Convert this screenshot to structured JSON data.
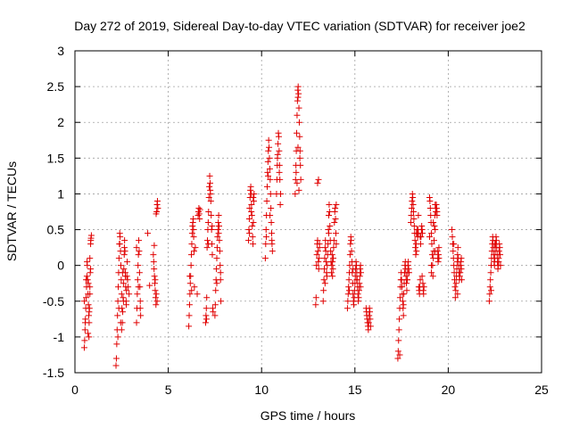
{
  "chart_data": {
    "type": "scatter",
    "title": "Day 272 of 2019, Sidereal Day-to-day VTEC variation (SDTVAR) for receiver joe2",
    "xlabel": "GPS time / hours",
    "ylabel": "SDTVAR / TECUs",
    "xlim": [
      0,
      25
    ],
    "ylim": [
      -1.5,
      3
    ],
    "xticks": [
      "0",
      "5",
      "10",
      "15",
      "20",
      "25"
    ],
    "yticks": [
      "-1.5",
      "-1",
      "-0.5",
      "0",
      "0.5",
      "1",
      "1.5",
      "2",
      "2.5",
      "3"
    ],
    "grid": true,
    "marker": "plus",
    "marker_color": "#e00000",
    "series": [
      {
        "x": [
          0.5,
          0.52,
          0.54,
          0.56,
          0.58,
          0.6,
          0.62,
          0.64,
          0.66,
          0.68,
          0.7,
          0.72,
          0.74,
          0.76,
          0.78,
          0.8,
          0.82,
          0.84,
          0.86,
          0.88,
          0.5,
          0.55,
          0.6,
          0.65,
          0.7,
          0.75,
          0.8,
          0.85,
          0.72,
          0.76,
          0.8,
          0.84,
          2.2,
          2.22,
          2.24,
          2.26,
          2.28,
          2.3,
          2.32,
          2.34,
          2.36,
          2.38,
          2.4,
          2.42,
          2.44,
          2.46,
          2.48,
          2.5,
          2.52,
          2.54,
          2.56,
          2.58,
          2.6,
          2.62,
          2.64,
          2.66,
          2.68,
          2.7,
          2.72,
          2.74,
          2.76,
          2.78,
          2.8,
          2.82,
          2.85,
          2.9,
          2.3,
          2.35,
          2.4,
          2.45,
          2.5,
          2.55,
          2.6,
          2.65,
          2.7,
          2.75,
          3.3,
          3.32,
          3.34,
          3.36,
          3.38,
          3.4,
          3.42,
          3.44,
          3.46,
          3.48,
          3.5,
          3.52,
          3.3,
          3.4,
          3.5,
          3.9,
          4.0,
          4.2,
          4.22,
          4.24,
          4.26,
          4.28,
          4.3,
          4.32,
          4.34,
          4.36,
          4.38,
          4.4,
          4.42,
          4.44,
          4.25,
          4.3,
          4.35,
          4.4,
          6.1,
          6.12,
          6.14,
          6.16,
          6.18,
          6.2,
          6.22,
          6.24,
          6.26,
          6.28,
          6.3,
          6.32,
          6.34,
          6.36,
          6.38,
          6.4,
          6.15,
          6.25,
          6.35,
          6.45,
          6.55,
          6.6,
          6.62,
          6.64,
          6.66,
          6.68,
          6.7,
          7.0,
          7.02,
          7.04,
          7.06,
          7.08,
          7.1,
          7.12,
          7.14,
          7.16,
          7.18,
          7.2,
          7.22,
          7.24,
          7.26,
          7.28,
          7.3,
          7.32,
          7.34,
          7.36,
          7.38,
          7.4,
          7.05,
          7.15,
          7.25,
          7.35,
          7.5,
          7.52,
          7.54,
          7.56,
          7.58,
          7.6,
          7.62,
          7.64,
          7.66,
          7.68,
          7.7,
          7.72,
          7.74,
          7.76,
          7.78,
          7.8,
          7.82,
          7.6,
          7.7,
          7.8,
          9.3,
          9.32,
          9.34,
          9.36,
          9.38,
          9.4,
          9.42,
          9.44,
          9.46,
          9.48,
          9.5,
          9.52,
          9.54,
          9.56,
          9.58,
          9.6,
          9.35,
          9.45,
          9.55,
          10.2,
          10.22,
          10.24,
          10.26,
          10.28,
          10.3,
          10.32,
          10.34,
          10.36,
          10.38,
          10.4,
          10.42,
          10.44,
          10.46,
          10.48,
          10.5,
          10.52,
          10.54,
          10.56,
          10.58,
          10.25,
          10.35,
          10.45,
          10.55,
          10.8,
          10.82,
          10.84,
          10.86,
          10.88,
          10.9,
          10.92,
          10.94,
          10.96,
          10.98,
          11.0,
          11.02,
          10.85,
          10.95,
          11.8,
          11.82,
          11.84,
          11.86,
          11.88,
          11.9,
          11.92,
          11.94,
          11.96,
          11.98,
          12.0,
          12.02,
          12.04,
          12.06,
          12.08,
          12.1,
          11.85,
          11.95,
          12.05,
          11.9,
          11.95,
          12.0,
          12.9,
          12.92,
          12.94,
          12.96,
          12.98,
          13.0,
          13.02,
          13.04,
          13.06,
          13.08,
          13.1,
          13.0,
          13.05,
          13.1,
          13.3,
          13.32,
          13.34,
          13.36,
          13.38,
          13.4,
          13.42,
          13.44,
          13.46,
          13.48,
          13.5,
          13.52,
          13.54,
          13.56,
          13.58,
          13.6,
          13.62,
          13.64,
          13.66,
          13.68,
          13.7,
          13.72,
          13.74,
          13.76,
          13.78,
          13.8,
          13.82,
          13.84,
          13.86,
          13.88,
          13.9,
          13.92,
          13.94,
          13.96,
          13.98,
          14.0,
          13.4,
          13.6,
          13.8,
          14.0,
          14.6,
          14.62,
          14.64,
          14.66,
          14.68,
          14.7,
          14.72,
          14.74,
          14.76,
          14.78,
          14.8,
          14.82,
          14.84,
          14.86,
          14.88,
          14.9,
          14.92,
          14.94,
          14.96,
          14.98,
          15.0,
          15.02,
          15.04,
          15.06,
          15.08,
          15.1,
          15.12,
          15.14,
          15.16,
          15.18,
          15.2,
          15.22,
          15.24,
          15.26,
          15.28,
          15.3,
          15.32,
          14.7,
          14.9,
          15.1,
          15.3,
          15.6,
          15.62,
          15.64,
          15.66,
          15.68,
          15.7,
          15.72,
          15.74,
          15.76,
          15.78,
          15.8,
          15.82,
          15.84,
          17.3,
          17.32,
          17.34,
          17.36,
          17.38,
          17.4,
          17.42,
          17.44,
          17.46,
          17.48,
          17.5,
          17.52,
          17.54,
          17.56,
          17.58,
          17.6,
          17.62,
          17.64,
          17.66,
          17.68,
          17.7,
          17.72,
          17.74,
          17.76,
          17.78,
          17.8,
          17.82,
          17.84,
          17.86,
          17.88,
          17.9,
          17.4,
          17.6,
          17.8,
          18.0,
          18.02,
          18.04,
          18.06,
          18.08,
          18.1,
          18.12,
          18.14,
          18.16,
          18.18,
          18.2,
          18.22,
          18.24,
          18.26,
          18.28,
          18.3,
          18.32,
          18.34,
          18.36,
          18.38,
          18.4,
          18.42,
          18.44,
          18.46,
          18.48,
          18.5,
          18.52,
          18.54,
          18.56,
          18.58,
          18.6,
          18.62,
          18.64,
          18.66,
          18.68,
          18.7,
          18.3,
          18.4,
          18.5,
          18.6,
          19.0,
          19.02,
          19.04,
          19.06,
          19.08,
          19.1,
          19.12,
          19.14,
          19.16,
          19.18,
          19.2,
          19.22,
          19.24,
          19.26,
          19.28,
          19.3,
          19.32,
          19.34,
          19.36,
          19.38,
          19.4,
          19.42,
          19.44,
          19.46,
          19.48,
          19.5,
          19.0,
          19.1,
          19.2,
          19.3,
          19.4,
          19.5,
          19.1,
          19.3,
          20.2,
          20.22,
          20.24,
          20.26,
          20.28,
          20.3,
          20.32,
          20.34,
          20.36,
          20.38,
          20.4,
          20.42,
          20.44,
          20.46,
          20.48,
          20.5,
          20.52,
          20.54,
          20.56,
          20.58,
          20.6,
          20.62,
          20.64,
          20.66,
          20.68,
          20.7,
          20.72,
          20.3,
          20.5,
          20.7,
          22.2,
          22.22,
          22.24,
          22.26,
          22.28,
          22.3,
          22.32,
          22.34,
          22.36,
          22.38,
          22.4,
          22.42,
          22.44,
          22.46,
          22.48,
          22.5,
          22.52,
          22.54,
          22.56,
          22.58,
          22.6,
          22.62,
          22.64,
          22.66,
          22.68,
          22.7,
          22.72,
          22.74,
          22.76,
          22.78,
          22.8,
          22.3,
          22.5,
          22.7
        ],
        "y": [
          -1.15,
          -1.05,
          -0.9,
          -0.75,
          -0.6,
          -0.45,
          -0.3,
          -0.15,
          0.0,
          -0.2,
          -0.4,
          -0.55,
          -0.7,
          -0.8,
          -0.6,
          -0.3,
          -0.1,
          0.3,
          0.38,
          0.42,
          -0.5,
          -0.8,
          -0.2,
          0.05,
          -0.95,
          -1.0,
          -0.4,
          0.35,
          -0.25,
          -0.65,
          0.1,
          -0.05,
          -1.4,
          -1.3,
          -1.1,
          -0.9,
          -0.7,
          -0.5,
          -0.3,
          -0.1,
          0.1,
          0.3,
          0.45,
          0.4,
          0.2,
          0.0,
          -0.2,
          -0.4,
          -0.6,
          -0.8,
          -0.65,
          -0.45,
          -0.25,
          -0.05,
          0.15,
          0.35,
          0.2,
          -0.1,
          -0.3,
          -0.5,
          -0.35,
          -0.15,
          0.05,
          -0.2,
          -0.3,
          -0.4,
          -1.0,
          -0.6,
          0.3,
          -0.8,
          -0.9,
          -0.1,
          -0.5,
          0.25,
          -0.15,
          -0.55,
          -0.8,
          -0.6,
          -0.4,
          -0.2,
          0.0,
          0.15,
          0.35,
          0.2,
          -0.1,
          -0.3,
          -0.5,
          -0.7,
          0.25,
          -0.3,
          -0.6,
          0.45,
          -0.28,
          0.15,
          0.05,
          -0.05,
          -0.15,
          -0.25,
          -0.35,
          -0.45,
          -0.55,
          -0.4,
          0.75,
          0.85,
          0.9,
          0.8,
          0.28,
          -0.2,
          0.72,
          -0.5,
          -0.85,
          -0.7,
          -0.55,
          -0.4,
          -0.25,
          -0.15,
          0.0,
          0.15,
          0.3,
          0.45,
          0.55,
          0.6,
          0.65,
          0.4,
          0.2,
          -0.3,
          -0.15,
          -0.35,
          0.5,
          0.25,
          -0.4,
          0.7,
          0.75,
          0.8,
          0.72,
          0.65,
          0.78,
          -0.8,
          -0.7,
          -0.6,
          -0.45,
          0.25,
          0.35,
          0.5,
          0.6,
          0.75,
          0.95,
          1.1,
          1.25,
          1.15,
          1.0,
          0.9,
          0.7,
          0.5,
          0.3,
          0.15,
          -0.6,
          -0.65,
          -0.75,
          0.3,
          1.05,
          0.55,
          -0.7,
          -0.55,
          -0.35,
          -0.2,
          -0.05,
          0.1,
          0.25,
          0.4,
          0.5,
          0.6,
          0.7,
          0.55,
          0.35,
          0.2,
          0.0,
          -0.2,
          -0.5,
          -0.25,
          0.45,
          -0.1,
          0.35,
          0.5,
          0.65,
          0.8,
          0.95,
          1.05,
          1.1,
          1.0,
          0.85,
          0.7,
          0.55,
          0.4,
          0.3,
          0.6,
          0.9,
          1.0,
          0.45,
          0.75,
          0.95,
          0.1,
          0.3,
          0.5,
          0.7,
          0.9,
          1.1,
          1.3,
          1.45,
          1.6,
          1.75,
          1.65,
          1.5,
          1.35,
          1.2,
          1.0,
          0.8,
          0.6,
          0.45,
          0.3,
          0.2,
          0.4,
          1.25,
          0.7,
          0.35,
          1.0,
          1.2,
          1.4,
          1.55,
          1.7,
          1.85,
          1.8,
          1.6,
          1.4,
          1.2,
          0.85,
          1.0,
          1.5,
          1.3,
          1.0,
          1.2,
          1.4,
          1.6,
          1.85,
          2.1,
          2.3,
          2.45,
          2.5,
          2.4,
          2.2,
          2.0,
          1.8,
          1.6,
          1.4,
          1.2,
          1.3,
          2.35,
          1.5,
          1.15,
          1.65,
          1.05,
          -0.55,
          -0.45,
          0.0,
          0.15,
          0.3,
          0.35,
          0.2,
          0.05,
          -0.05,
          0.1,
          0.25,
          1.15,
          1.2,
          0.3,
          -0.5,
          -0.35,
          -0.2,
          -0.05,
          0.1,
          0.25,
          0.35,
          0.2,
          0.05,
          -0.1,
          -0.15,
          0.0,
          0.15,
          0.3,
          0.5,
          0.7,
          0.85,
          0.75,
          0.55,
          0.35,
          0.2,
          0.05,
          -0.1,
          0.0,
          0.15,
          0.05,
          -0.05,
          0.1,
          0.25,
          0.35,
          0.6,
          0.75,
          0.8,
          0.65,
          0.45,
          0.3,
          -0.25,
          0.45,
          -0.15,
          0.85,
          -0.6,
          -0.5,
          -0.4,
          -0.3,
          -0.2,
          -0.1,
          0.0,
          0.15,
          0.3,
          0.4,
          0.35,
          0.2,
          0.05,
          -0.1,
          -0.25,
          -0.4,
          -0.5,
          -0.55,
          -0.45,
          -0.35,
          -0.25,
          -0.15,
          -0.05,
          0.05,
          0.0,
          -0.1,
          -0.2,
          -0.3,
          -0.4,
          -0.5,
          -0.45,
          -0.35,
          -0.25,
          -0.15,
          -0.05,
          0.0,
          -0.1,
          -0.35,
          -0.05,
          -0.2,
          -0.3,
          -0.6,
          -0.65,
          -0.7,
          -0.75,
          -0.8,
          -0.85,
          -0.9,
          -0.8,
          -0.7,
          -0.6,
          -0.65,
          -0.75,
          -0.85,
          -1.3,
          -1.2,
          -1.05,
          -0.9,
          -0.75,
          -0.6,
          -0.45,
          -0.3,
          -0.2,
          -0.1,
          -0.2,
          -0.3,
          -0.4,
          -0.5,
          -0.6,
          -0.55,
          -0.4,
          -0.25,
          -0.1,
          0.0,
          0.05,
          -0.05,
          -0.15,
          -0.25,
          -0.35,
          -0.2,
          -0.1,
          0.0,
          0.05,
          -0.05,
          -0.1,
          -1.25,
          -0.7,
          -0.2,
          0.6,
          0.7,
          0.8,
          0.9,
          1.0,
          0.95,
          0.85,
          0.75,
          0.65,
          0.55,
          0.45,
          0.35,
          0.25,
          0.15,
          0.3,
          0.45,
          0.5,
          0.45,
          0.4,
          0.5,
          0.45,
          -0.3,
          -0.35,
          -0.4,
          -0.3,
          -0.2,
          0.3,
          0.4,
          0.5,
          0.55,
          0.5,
          0.45,
          -0.25,
          -0.35,
          -0.4,
          -0.3,
          0.2,
          0.7,
          0.4,
          -0.15,
          0.95,
          0.9,
          0.8,
          0.7,
          0.6,
          0.45,
          0.3,
          0.15,
          0.0,
          -0.15,
          0.1,
          0.2,
          0.35,
          0.55,
          0.7,
          0.85,
          0.8,
          0.75,
          0.85,
          0.8,
          0.7,
          0.2,
          0.1,
          0.05,
          0.15,
          0.25,
          0.4,
          -0.1,
          0.6,
          0.2,
          0.75,
          0.1,
          0.0,
          0.5,
          0.5,
          0.4,
          0.3,
          0.2,
          0.1,
          0.0,
          -0.1,
          -0.2,
          -0.3,
          -0.45,
          -0.35,
          -0.25,
          -0.15,
          -0.05,
          0.05,
          0.15,
          0.25,
          0.1,
          0.0,
          -0.1,
          -0.2,
          -0.15,
          -0.1,
          0.0,
          0.05,
          -0.05,
          -0.2,
          0.3,
          -0.4,
          0.1,
          -0.5,
          -0.4,
          -0.3,
          -0.2,
          -0.1,
          0.0,
          0.1,
          0.2,
          0.3,
          0.4,
          0.35,
          0.25,
          0.15,
          0.05,
          0.0,
          0.1,
          0.2,
          0.3,
          0.4,
          0.35,
          0.25,
          0.15,
          0.05,
          -0.05,
          0.0,
          0.1,
          0.2,
          0.3,
          0.25,
          0.15,
          0.0,
          -0.35,
          0.3,
          0.05
        ]
      }
    ]
  }
}
